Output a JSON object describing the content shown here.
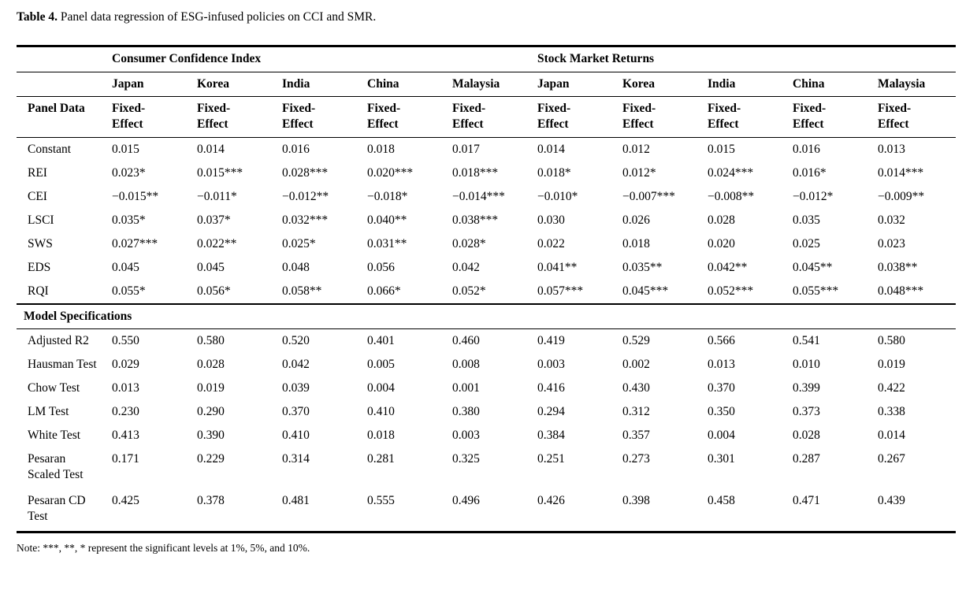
{
  "caption": {
    "label": "Table 4.",
    "text": " Panel data regression of ESG-infused policies on CCI and SMR."
  },
  "table": {
    "group_headers": [
      "Consumer Confidence Index",
      "Stock Market Returns"
    ],
    "countries": [
      "Japan",
      "Korea",
      "India",
      "China",
      "Malaysia",
      "Japan",
      "Korea",
      "India",
      "China",
      "Malaysia"
    ],
    "panel_label": "Panel Data",
    "effect_label": "Fixed-Effect",
    "coefficient_rows": [
      {
        "label": "Constant",
        "values": [
          "0.015",
          "0.014",
          "0.016",
          "0.018",
          "0.017",
          "0.014",
          "0.012",
          "0.015",
          "0.016",
          "0.013"
        ]
      },
      {
        "label": "REI",
        "values": [
          "0.023*",
          "0.015***",
          "0.028***",
          "0.020***",
          "0.018***",
          "0.018*",
          "0.012*",
          "0.024***",
          "0.016*",
          "0.014***"
        ]
      },
      {
        "label": "CEI",
        "values": [
          "−0.015**",
          "−0.011*",
          "−0.012**",
          "−0.018*",
          "−0.014***",
          "−0.010*",
          "−0.007***",
          "−0.008**",
          "−0.012*",
          "−0.009**"
        ]
      },
      {
        "label": "LSCI",
        "values": [
          "0.035*",
          "0.037*",
          "0.032***",
          "0.040**",
          "0.038***",
          "0.030",
          "0.026",
          "0.028",
          "0.035",
          "0.032"
        ]
      },
      {
        "label": "SWS",
        "values": [
          "0.027***",
          "0.022**",
          "0.025*",
          "0.031**",
          "0.028*",
          "0.022",
          "0.018",
          "0.020",
          "0.025",
          "0.023"
        ]
      },
      {
        "label": "EDS",
        "values": [
          "0.045",
          "0.045",
          "0.048",
          "0.056",
          "0.042",
          "0.041**",
          "0.035**",
          "0.042**",
          "0.045**",
          "0.038**"
        ]
      },
      {
        "label": "RQI",
        "values": [
          "0.055*",
          "0.056*",
          "0.058**",
          "0.066*",
          "0.052*",
          "0.057***",
          "0.045***",
          "0.052***",
          "0.055***",
          "0.048***"
        ]
      }
    ],
    "section_header": "Model Specifications",
    "spec_rows": [
      {
        "label": "Adjusted R2",
        "values": [
          "0.550",
          "0.580",
          "0.520",
          "0.401",
          "0.460",
          "0.419",
          "0.529",
          "0.566",
          "0.541",
          "0.580"
        ]
      },
      {
        "label": "Hausman Test",
        "values": [
          "0.029",
          "0.028",
          "0.042",
          "0.005",
          "0.008",
          "0.003",
          "0.002",
          "0.013",
          "0.010",
          "0.019"
        ]
      },
      {
        "label": "Chow Test",
        "values": [
          "0.013",
          "0.019",
          "0.039",
          "0.004",
          "0.001",
          "0.416",
          "0.430",
          "0.370",
          "0.399",
          "0.422"
        ]
      },
      {
        "label": "LM Test",
        "values": [
          "0.230",
          "0.290",
          "0.370",
          "0.410",
          "0.380",
          "0.294",
          "0.312",
          "0.350",
          "0.373",
          "0.338"
        ]
      },
      {
        "label": "White Test",
        "values": [
          "0.413",
          "0.390",
          "0.410",
          "0.018",
          "0.003",
          "0.384",
          "0.357",
          "0.004",
          "0.028",
          "0.014"
        ]
      },
      {
        "label": "Pesaran Scaled Test",
        "values": [
          "0.171",
          "0.229",
          "0.314",
          "0.281",
          "0.325",
          "0.251",
          "0.273",
          "0.301",
          "0.287",
          "0.267"
        ]
      },
      {
        "label": "Pesaran CD Test",
        "values": [
          "0.425",
          "0.378",
          "0.481",
          "0.555",
          "0.496",
          "0.426",
          "0.398",
          "0.458",
          "0.471",
          "0.439"
        ]
      }
    ]
  },
  "note": "Note: ***, **, * represent the significant levels at 1%, 5%, and 10%."
}
